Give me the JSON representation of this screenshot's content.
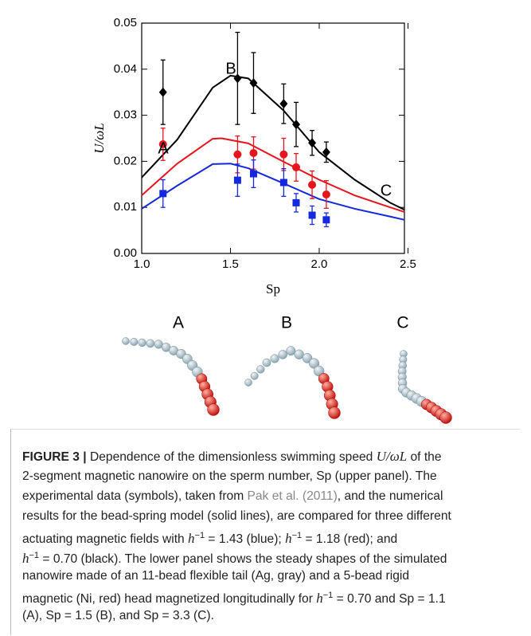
{
  "chart_data": {
    "type": "scatter",
    "y_label": "U/ωL",
    "x_label": "Sp",
    "xlim": [
      1.0,
      2.48
    ],
    "ylim": [
      0,
      0.05
    ],
    "xticks": [
      {
        "value": 1,
        "label": "1.0"
      },
      {
        "value": 1.5,
        "label": "1.5"
      },
      {
        "value": 2,
        "label": "2.0"
      },
      {
        "value": 2.5,
        "label": "2.5"
      }
    ],
    "yticks": [
      {
        "value": 0,
        "label": "0.00"
      },
      0.01,
      0.02,
      0.03,
      0.04,
      0.05
    ],
    "series": [
      {
        "color": "#000000",
        "marker": "diamond",
        "x": [
          1.12,
          1.54,
          1.63,
          1.8,
          1.87,
          1.96,
          2.04
        ],
        "values": [
          0.035,
          0.038,
          0.037,
          0.0325,
          0.028,
          0.024,
          0.022
        ],
        "errors": [
          0.007,
          0.01,
          0.0066,
          0.0043,
          0.0048,
          0.0027,
          0.0022
        ]
      },
      {
        "color": "#e8141c",
        "marker": "circle",
        "x": [
          1.12,
          1.54,
          1.63,
          1.8,
          1.87,
          1.96,
          2.04
        ],
        "values": [
          0.0237,
          0.0215,
          0.0218,
          0.0215,
          0.0187,
          0.0149,
          0.0128
        ],
        "errors": [
          0.0035,
          0.004,
          0.0035,
          0.0035,
          0.003,
          0.003,
          0.003
        ]
      },
      {
        "color": "#1428e0",
        "marker": "square",
        "x": [
          1.12,
          1.54,
          1.63,
          1.8,
          1.87,
          1.96,
          2.04
        ],
        "values": [
          0.013,
          0.0159,
          0.0173,
          0.0154,
          0.011,
          0.0083,
          0.0073
        ],
        "errors": [
          0.003,
          0.0035,
          0.003,
          0.003,
          0.002,
          0.002,
          0.0015
        ]
      }
    ],
    "lines": [
      {
        "color": "#000000",
        "x": [
          1.0,
          1.2,
          1.4,
          1.5,
          1.6,
          1.8,
          2.0,
          2.2,
          2.4,
          2.48
        ],
        "values": [
          0.0165,
          0.0247,
          0.036,
          0.0386,
          0.038,
          0.031,
          0.022,
          0.016,
          0.011,
          0.0095
        ]
      },
      {
        "color": "#e8141c",
        "x": [
          1.0,
          1.2,
          1.4,
          1.45,
          1.6,
          1.8,
          2.0,
          2.2,
          2.4,
          2.48
        ],
        "values": [
          0.0126,
          0.0195,
          0.0249,
          0.025,
          0.0239,
          0.0199,
          0.016,
          0.0126,
          0.01,
          0.009
        ]
      },
      {
        "color": "#1428e0",
        "x": [
          1.0,
          1.2,
          1.4,
          1.5,
          1.6,
          1.8,
          2.0,
          2.2,
          2.4,
          2.48
        ],
        "values": [
          0.0097,
          0.0147,
          0.0194,
          0.0195,
          0.0185,
          0.0152,
          0.0118,
          0.0097,
          0.008,
          0.0073
        ]
      }
    ],
    "annotations": [
      "A",
      "B",
      "C"
    ]
  },
  "shapes": {
    "labels": [
      "A",
      "B",
      "C"
    ]
  },
  "caption": {
    "lines": [
      [
        {
          "text": "FIGURE 3 |",
          "style": "bold"
        },
        {
          "text": " Dependence of the dimensionless swimming speed ",
          "style": "plain"
        },
        {
          "text": "U/ωL",
          "style": "italic"
        },
        {
          "text": " of the",
          "style": "plain"
        }
      ],
      [
        {
          "text": "2-segment magnetic nanowire on the sperm number, Sp (upper panel). The",
          "style": "plain"
        }
      ],
      [
        {
          "text": "experimental data (symbols), taken from ",
          "style": "plain"
        },
        {
          "text": "Pak et al. (2011)",
          "style": "link"
        },
        {
          "text": ", and the numerical",
          "style": "plain"
        }
      ],
      [
        {
          "text": "results for the bead-spring model (solid lines), are compared for three different",
          "style": "plain"
        }
      ],
      [
        {
          "text": "actuating magnetic fields with ",
          "style": "plain"
        },
        {
          "text": "h",
          "style": "italic"
        },
        {
          "text": "−1",
          "style": "sup"
        },
        {
          "text": " = 1.43 (blue); ",
          "style": "plain"
        },
        {
          "text": "h",
          "style": "italic"
        },
        {
          "text": "−1",
          "style": "sup"
        },
        {
          "text": " = 1.18 (red); and",
          "style": "plain"
        }
      ],
      [
        {
          "text": "h",
          "style": "italic"
        },
        {
          "text": "−1",
          "style": "sup"
        },
        {
          "text": " = 0.70 (black). The lower panel shows the steady shapes of the simulated",
          "style": "plain"
        }
      ],
      [
        {
          "text": "nanowire made of an 11-bead flexible tail (Ag, gray) and a 5-bead rigid",
          "style": "plain"
        }
      ],
      [
        {
          "text": "magnetic (Ni, red) head magnetized longitudinally for ",
          "style": "plain"
        },
        {
          "text": "h",
          "style": "italic"
        },
        {
          "text": "−1",
          "style": "sup"
        },
        {
          "text": " = 0.70 and Sp = 1.1",
          "style": "plain"
        }
      ],
      [
        {
          "text": "(A), Sp = 1.5 (B), and Sp = 3.3 (C).",
          "style": "plain"
        }
      ]
    ]
  }
}
